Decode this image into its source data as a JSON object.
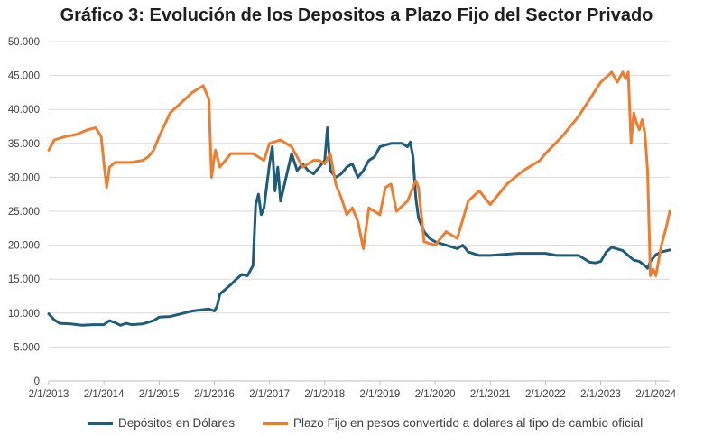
{
  "chart_data": {
    "type": "line",
    "title": "Gráfico 3: Evolución de los Depositos a Plazo Fijo del Sector Privado",
    "xlabel": "",
    "ylabel": "",
    "ylim": [
      0,
      50000
    ],
    "yticks": [
      "0",
      "5.000",
      "10.000",
      "15.000",
      "20.000",
      "25.000",
      "30.000",
      "35.000",
      "40.000",
      "45.000",
      "50.000"
    ],
    "ytick_values": [
      0,
      5000,
      10000,
      15000,
      20000,
      25000,
      30000,
      35000,
      40000,
      45000,
      50000
    ],
    "xlim": [
      2013.0,
      2024.25
    ],
    "xticks": [
      "2/1/2013",
      "2/1/2014",
      "2/1/2015",
      "2/1/2016",
      "2/1/2017",
      "2/1/2018",
      "2/1/2019",
      "2/1/2020",
      "2/1/2021",
      "2/1/2022",
      "2/1/2023",
      "2/1/2024"
    ],
    "xtick_values": [
      2013,
      2014,
      2015,
      2016,
      2017,
      2018,
      2019,
      2020,
      2021,
      2022,
      2023,
      2024
    ],
    "grid": true,
    "legend_position": "bottom",
    "series": [
      {
        "name": "Depósitos en Dólares",
        "color": "#1f5c7a",
        "x": [
          2013.0,
          2013.1,
          2013.2,
          2013.4,
          2013.6,
          2013.8,
          2014.0,
          2014.1,
          2014.2,
          2014.3,
          2014.4,
          2014.5,
          2014.7,
          2014.9,
          2015.0,
          2015.2,
          2015.4,
          2015.6,
          2015.8,
          2015.9,
          2016.0,
          2016.05,
          2016.1,
          2016.2,
          2016.3,
          2016.4,
          2016.5,
          2016.6,
          2016.7,
          2016.75,
          2016.8,
          2016.85,
          2016.9,
          2017.0,
          2017.05,
          2017.1,
          2017.15,
          2017.2,
          2017.3,
          2017.4,
          2017.5,
          2017.6,
          2017.7,
          2017.8,
          2017.9,
          2018.0,
          2018.05,
          2018.1,
          2018.2,
          2018.3,
          2018.4,
          2018.5,
          2018.6,
          2018.7,
          2018.8,
          2018.9,
          2019.0,
          2019.2,
          2019.4,
          2019.5,
          2019.55,
          2019.6,
          2019.65,
          2019.7,
          2019.8,
          2019.9,
          2020.0,
          2020.2,
          2020.4,
          2020.5,
          2020.6,
          2020.8,
          2021.0,
          2021.5,
          2022.0,
          2022.2,
          2022.4,
          2022.6,
          2022.8,
          2022.9,
          2023.0,
          2023.1,
          2023.2,
          2023.4,
          2023.6,
          2023.7,
          2023.8,
          2023.85,
          2023.9,
          2024.0,
          2024.1,
          2024.25
        ],
        "values": [
          9900,
          9000,
          8500,
          8400,
          8200,
          8300,
          8300,
          8900,
          8600,
          8200,
          8500,
          8300,
          8400,
          8900,
          9400,
          9500,
          9900,
          10300,
          10500,
          10600,
          10300,
          11000,
          12800,
          13500,
          14200,
          15000,
          15700,
          15500,
          17000,
          26000,
          27500,
          24500,
          25500,
          32000,
          34500,
          28000,
          31500,
          26500,
          30000,
          33500,
          31000,
          32000,
          31000,
          30500,
          31500,
          32500,
          37300,
          31000,
          30000,
          30500,
          31500,
          32000,
          30000,
          31000,
          32500,
          33000,
          34500,
          35000,
          35000,
          34500,
          35200,
          33000,
          27000,
          24000,
          22000,
          21000,
          20500,
          20000,
          19500,
          20000,
          19000,
          18500,
          18500,
          18800,
          18800,
          18500,
          18500,
          18500,
          17500,
          17400,
          17600,
          19000,
          19700,
          19200,
          17800,
          17600,
          17000,
          16600,
          17600,
          18600,
          19000,
          19300
        ]
      },
      {
        "name": "Plazo Fijo en pesos convertido a dolares al tipo de cambio oficial",
        "color": "#ed7d31",
        "x": [
          2013.0,
          2013.1,
          2013.3,
          2013.5,
          2013.7,
          2013.85,
          2013.95,
          2014.0,
          2014.05,
          2014.1,
          2014.2,
          2014.3,
          2014.5,
          2014.7,
          2014.8,
          2014.9,
          2015.0,
          2015.2,
          2015.4,
          2015.6,
          2015.8,
          2015.9,
          2015.95,
          2016.0,
          2016.02,
          2016.1,
          2016.2,
          2016.3,
          2016.5,
          2016.7,
          2016.9,
          2017.0,
          2017.2,
          2017.4,
          2017.5,
          2017.6,
          2017.8,
          2017.9,
          2018.0,
          2018.1,
          2018.2,
          2018.3,
          2018.4,
          2018.5,
          2018.6,
          2018.7,
          2018.75,
          2018.8,
          2018.9,
          2019.0,
          2019.1,
          2019.2,
          2019.3,
          2019.5,
          2019.6,
          2019.65,
          2019.7,
          2019.8,
          2020.0,
          2020.2,
          2020.4,
          2020.6,
          2020.8,
          2021.0,
          2021.3,
          2021.6,
          2021.9,
          2022.0,
          2022.3,
          2022.6,
          2022.8,
          2023.0,
          2023.2,
          2023.3,
          2023.4,
          2023.45,
          2023.5,
          2023.55,
          2023.6,
          2023.65,
          2023.7,
          2023.75,
          2023.8,
          2023.85,
          2023.9,
          2023.95,
          2024.0,
          2024.1,
          2024.2,
          2024.25
        ],
        "values": [
          34000,
          35500,
          36000,
          36300,
          37000,
          37300,
          36000,
          32000,
          28500,
          31500,
          32200,
          32200,
          32200,
          32500,
          33000,
          34000,
          36000,
          39500,
          41000,
          42500,
          43500,
          41500,
          30000,
          33000,
          34000,
          31500,
          32500,
          33500,
          33500,
          33500,
          32500,
          35000,
          35500,
          34500,
          33000,
          31500,
          32500,
          32500,
          32000,
          33500,
          29000,
          27000,
          24500,
          25500,
          23500,
          19500,
          22500,
          25500,
          25000,
          24500,
          28500,
          29000,
          25000,
          26500,
          28500,
          29500,
          28500,
          20500,
          20000,
          22000,
          21000,
          26500,
          28000,
          26000,
          29000,
          31000,
          32500,
          33500,
          36000,
          39000,
          41500,
          44000,
          45500,
          44000,
          45500,
          44500,
          45500,
          35000,
          39500,
          38000,
          37000,
          38500,
          36500,
          31000,
          15500,
          16500,
          15500,
          20000,
          23000,
          25000
        ]
      }
    ]
  }
}
